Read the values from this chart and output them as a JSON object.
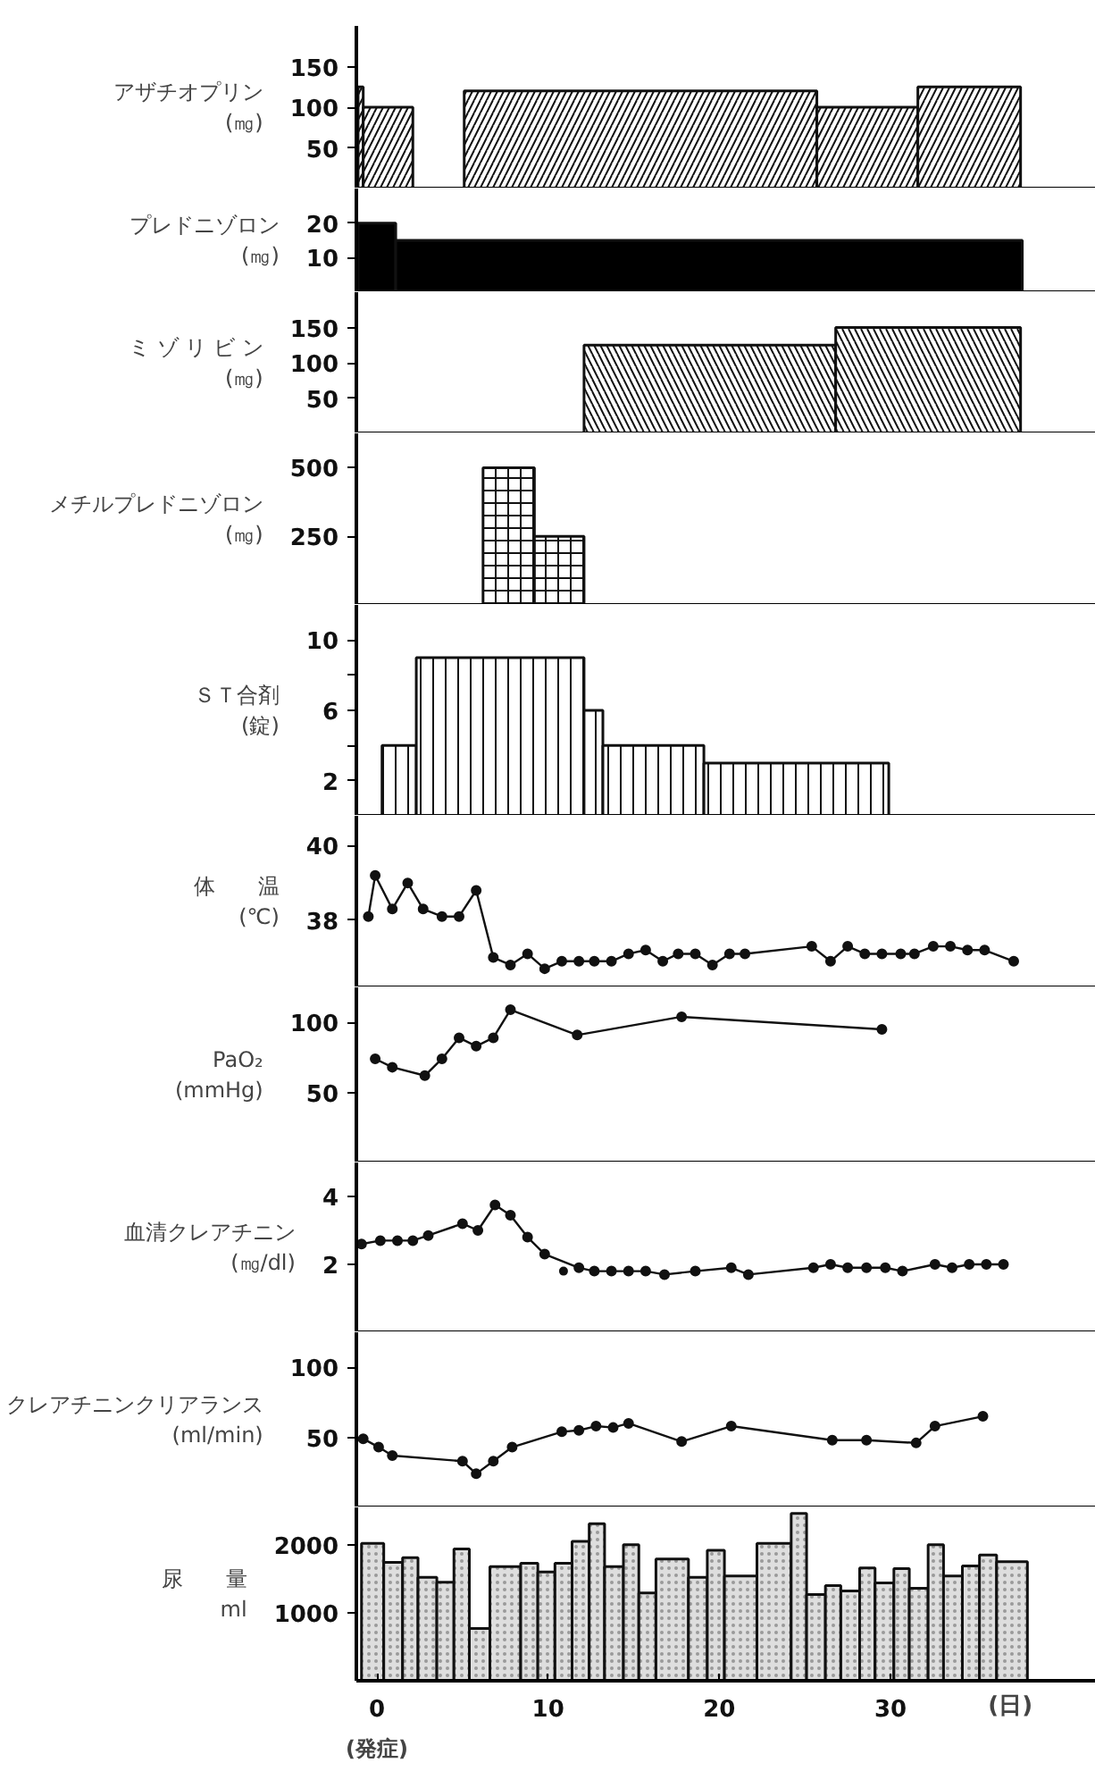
{
  "chart_data": [
    {
      "type": "histogram",
      "ylabel": "アザチオプリン\n(㎎)",
      "bins": [
        -1.1,
        -0.8,
        2.1,
        5.1,
        25.7,
        31.6,
        37.6
      ],
      "values": [
        125,
        100,
        0,
        120,
        100,
        125
      ],
      "color": "#111111",
      "xlim": [
        -1.2,
        42
      ],
      "ylim": [
        0,
        200
      ],
      "yticks": [
        50,
        100,
        150
      ],
      "tick_labels": "y"
    },
    {
      "type": "histogram",
      "ylabel": "プレドニゾロン\n(㎎)",
      "bins": [
        -1.1,
        1.1,
        37.7
      ],
      "values": [
        20,
        15
      ],
      "color": "#000000",
      "xlim": [
        -1.2,
        42
      ],
      "ylim": [
        0,
        30
      ],
      "yticks": [
        10,
        20
      ],
      "tick_labels": "y"
    },
    {
      "type": "histogram",
      "ylabel": "ミ ゾ リ ビ ン\n(㎎)",
      "bins": [
        12.1,
        26.8,
        37.6
      ],
      "values": [
        125,
        150
      ],
      "color": "#111111",
      "xlim": [
        -1.2,
        42
      ],
      "ylim": [
        0,
        200
      ],
      "yticks": [
        50,
        100,
        150
      ],
      "tick_labels": "y"
    },
    {
      "type": "histogram",
      "ylabel": "メチルプレドニゾロン\n(㎎)",
      "bins": [
        6.2,
        9.2,
        12.1
      ],
      "values": [
        500,
        250
      ],
      "color": "#111111",
      "xlim": [
        -1.2,
        42
      ],
      "ylim": [
        0,
        625
      ],
      "yticks": [
        250,
        500
      ],
      "tick_labels": "y"
    },
    {
      "type": "histogram",
      "ylabel": "ＳＴ合剤\n(錠)",
      "bins": [
        0.3,
        2.3,
        12.1,
        13.2,
        19.1,
        29.9
      ],
      "values": [
        4,
        9,
        6,
        4,
        3
      ],
      "color": "#111111",
      "xlim": [
        -1.2,
        42
      ],
      "ylim": [
        0,
        12
      ],
      "yticks": [
        2,
        {
          "value": 4,
          "label": null
        },
        6,
        {
          "value": 8,
          "label": null
        },
        10
      ],
      "tick_labels": "y"
    },
    {
      "type": "line",
      "ylabel": "体　　温\n(℃)",
      "marker": "circle",
      "xlim": [
        -1.2,
        42
      ],
      "ylim": [
        36.2,
        40.8
      ],
      "yticks": [
        38,
        40
      ],
      "tick_labels": "y",
      "series": [
        {
          "type": "line",
          "color": "#111111",
          "x": [
            -0.5,
            -0.1,
            0.9,
            1.8,
            2.7,
            3.8,
            4.8,
            5.8,
            6.8,
            7.8,
            8.8,
            9.8,
            10.8,
            11.8,
            12.7,
            13.7,
            14.7,
            15.7,
            16.7,
            17.6,
            18.6,
            19.6,
            20.6,
            21.5,
            25.4,
            26.5,
            27.5,
            28.5,
            29.5,
            30.6,
            31.4,
            32.5,
            33.5,
            34.5,
            35.5,
            37.2
          ],
          "values": [
            38.1,
            39.2,
            38.3,
            39.0,
            38.3,
            38.1,
            38.1,
            38.8,
            37.0,
            36.8,
            37.1,
            36.7,
            36.9,
            36.9,
            36.9,
            36.9,
            37.1,
            37.2,
            36.9,
            37.1,
            37.1,
            36.8,
            37.1,
            37.1,
            37.3,
            36.9,
            37.3,
            37.1,
            37.1,
            37.1,
            37.1,
            37.3,
            37.3,
            37.2,
            37.2,
            36.9
          ]
        }
      ]
    },
    {
      "type": "line",
      "ylabel": "PaO₂\n(mmHg)",
      "marker": "circle",
      "xlim": [
        -1.2,
        42
      ],
      "ylim": [
        0,
        125
      ],
      "yticks": [
        50,
        100
      ],
      "tick_labels": "y",
      "series": [
        {
          "type": "line",
          "color": "#111111",
          "x": [
            -0.1,
            0.9,
            2.8,
            3.8,
            4.8,
            5.8,
            6.8,
            7.8,
            11.7,
            17.8,
            29.5
          ],
          "values": [
            74,
            68,
            62,
            74,
            89,
            83,
            89,
            109,
            91,
            104,
            95
          ]
        }
      ]
    },
    {
      "type": "line",
      "ylabel": "血清クレアチニン\n(㎎/dl)",
      "marker": "circle",
      "xlim": [
        -1.2,
        42
      ],
      "ylim": [
        0,
        5
      ],
      "yticks": [
        2,
        4
      ],
      "tick_labels": "y",
      "series": [
        {
          "type": "line",
          "color": "#111111",
          "x": [
            -0.9,
            0.2,
            1.2,
            2.1,
            3.0,
            5.0,
            5.9,
            6.9,
            7.8,
            8.8,
            9.8,
            11.8,
            12.7,
            13.7,
            14.7,
            15.7,
            16.8,
            18.6,
            20.7,
            21.7,
            25.5,
            26.5,
            27.5,
            28.6,
            29.7,
            30.7,
            32.6,
            33.6,
            34.6,
            35.6,
            36.6
          ],
          "values": [
            2.6,
            2.7,
            2.7,
            2.7,
            2.85,
            3.2,
            3.0,
            3.75,
            3.45,
            2.8,
            2.3,
            1.9,
            1.8,
            1.8,
            1.8,
            1.8,
            1.7,
            1.8,
            1.9,
            1.7,
            1.9,
            2.0,
            1.9,
            1.9,
            1.9,
            1.8,
            2.0,
            1.9,
            2.0,
            2.0,
            2.0
          ]
        },
        {
          "type": "scatter",
          "color": "#111111",
          "x": [
            10.9
          ],
          "values": [
            1.8
          ]
        }
      ]
    },
    {
      "type": "line",
      "ylabel": "クレアチニンクリアランス\n(ml/min)",
      "marker": "circle",
      "xlim": [
        -1.2,
        42
      ],
      "ylim": [
        0,
        125
      ],
      "yticks": [
        50,
        100
      ],
      "tick_labels": "y",
      "series": [
        {
          "type": "line",
          "color": "#111111",
          "x": [
            -0.8,
            0.1,
            0.9,
            5.0,
            5.8,
            6.8,
            7.9,
            10.8,
            11.8,
            12.8,
            13.8,
            14.7,
            17.8,
            20.7,
            26.6,
            28.6,
            31.5,
            32.6,
            35.4
          ],
          "values": [
            49,
            43,
            37,
            33,
            24,
            33,
            43,
            54,
            55,
            58,
            57,
            60,
            47,
            58,
            48,
            48,
            46,
            58,
            65
          ]
        }
      ]
    },
    {
      "type": "histogram",
      "ylabel": "尿　　量\nml",
      "xlabel": "(日)",
      "annotations": [
        "(発症)"
      ],
      "bins": [
        -0.9,
        0.4,
        1.5,
        2.4,
        3.5,
        4.5,
        5.4,
        6.6,
        8.4,
        9.4,
        10.4,
        11.4,
        12.4,
        13.3,
        14.4,
        15.3,
        16.3,
        18.2,
        19.3,
        20.3,
        22.2,
        24.2,
        25.1,
        26.2,
        27.1,
        28.2,
        29.1,
        30.2,
        31.1,
        32.2,
        33.1,
        34.2,
        35.2,
        36.2,
        38.0
      ],
      "values": [
        2020,
        1740,
        1810,
        1520,
        1450,
        1940,
        770,
        1680,
        1730,
        1600,
        1730,
        2050,
        2310,
        1680,
        2000,
        1290,
        1790,
        1520,
        1920,
        1540,
        2020,
        2460,
        1270,
        1400,
        1320,
        1660,
        1440,
        1650,
        1360,
        2000,
        1540,
        1690,
        1850,
        1750
      ],
      "color": "#dedede",
      "xlim": [
        -1.2,
        42
      ],
      "ylim": [
        0,
        2550
      ],
      "xticks": [
        0,
        10,
        20,
        30
      ],
      "yticks": [
        1000,
        2000
      ]
    }
  ]
}
